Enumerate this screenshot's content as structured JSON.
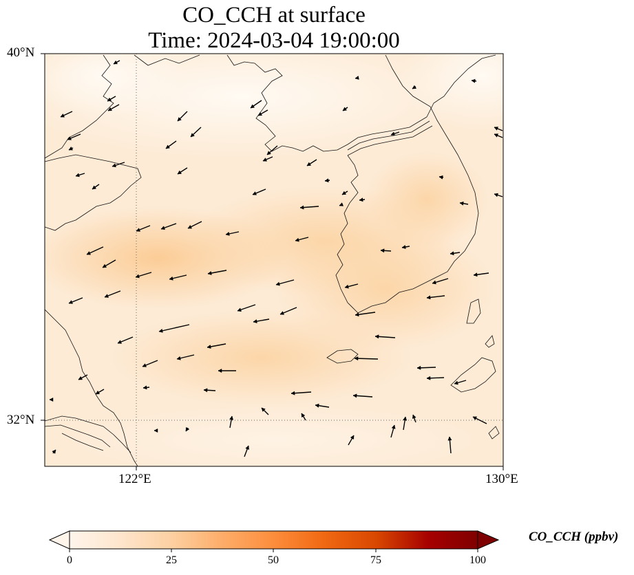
{
  "title": "CO_CCH at surface",
  "subtitle": "Time: 2024-03-04 19:00:00",
  "lat_labels": [
    "40°N",
    "32°N"
  ],
  "lon_labels": [
    "122°E",
    "130°E"
  ],
  "colorbar": {
    "label": "CO_CCH (ppbv)",
    "ticks": [
      "0",
      "25",
      "50",
      "75",
      "100"
    ],
    "colormap": [
      "#fff5eb",
      "#fee6ce",
      "#fdd0a2",
      "#fdae6b",
      "#fd8d3c",
      "#f16913",
      "#d94801",
      "#a60000",
      "#7f0000"
    ],
    "extend": "both"
  },
  "map": {
    "extent_lon": [
      120,
      130
    ],
    "extent_lat": [
      31,
      40
    ],
    "gridlines": "dotted",
    "background_color": "#fde9d2",
    "field_description_hotspots": [
      {
        "lon": 122.2,
        "lat": 35.6,
        "value": 25
      },
      {
        "lon": 125.6,
        "lat": 35.8,
        "value": 22
      },
      {
        "lon": 126.6,
        "lat": 34.4,
        "value": 20
      },
      {
        "lon": 124.2,
        "lat": 33.2,
        "value": 18
      }
    ]
  }
}
